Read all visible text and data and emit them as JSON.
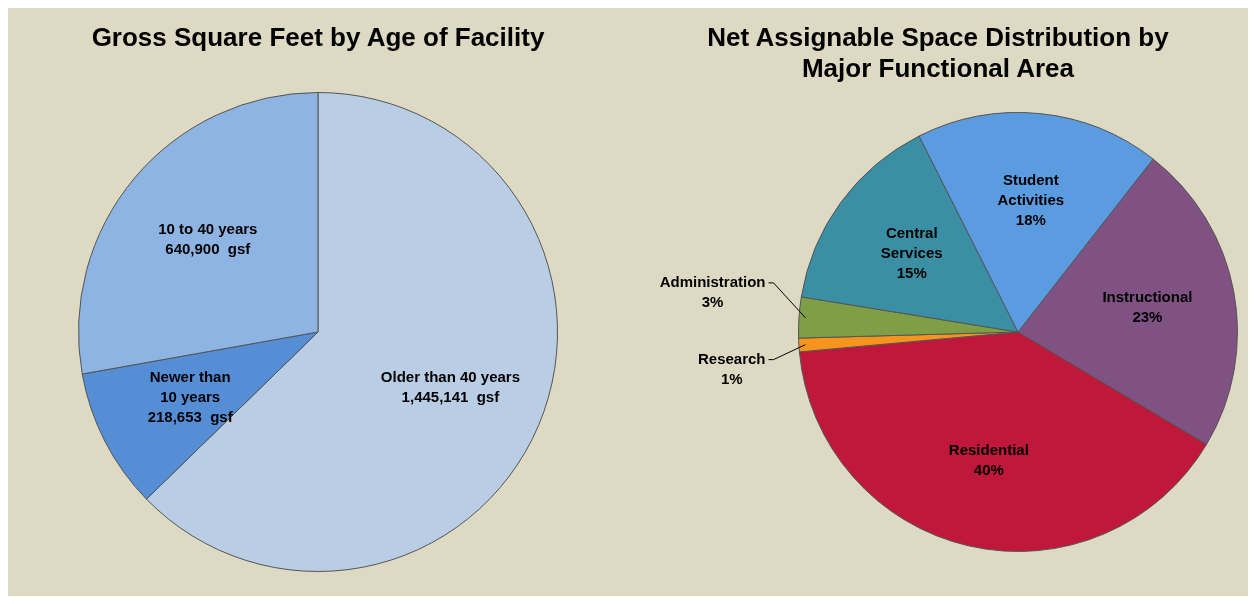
{
  "chart_data": [
    {
      "type": "pie",
      "title": "Gross Square Feet by Age of Facility",
      "categories": [
        "Older than 40 years",
        "Newer than 10 years",
        "10 to 40 years"
      ],
      "values": [
        1445141,
        218653,
        640900
      ],
      "value_labels": [
        "1,445,141  gsf",
        "218,653  gsf",
        "640,900  gsf"
      ],
      "colors": [
        "#b9cde5",
        "#558ed5",
        "#8eb4e3"
      ],
      "legend": false
    },
    {
      "type": "pie",
      "title": "Net Assignable Space Distribution by Major Functional Area",
      "categories": [
        "Instructional",
        "Residential",
        "Research",
        "Administration",
        "Central Services",
        "Student Activities"
      ],
      "values": [
        23,
        40,
        1,
        3,
        15,
        18
      ],
      "value_labels": [
        "23%",
        "40%",
        "1%",
        "3%",
        "15%",
        "18%"
      ],
      "colors": [
        "#7f5283",
        "#c0183a",
        "#f7941d",
        "#7f9e45",
        "#3a8fa5",
        "#5b9be0"
      ],
      "legend": false
    }
  ]
}
